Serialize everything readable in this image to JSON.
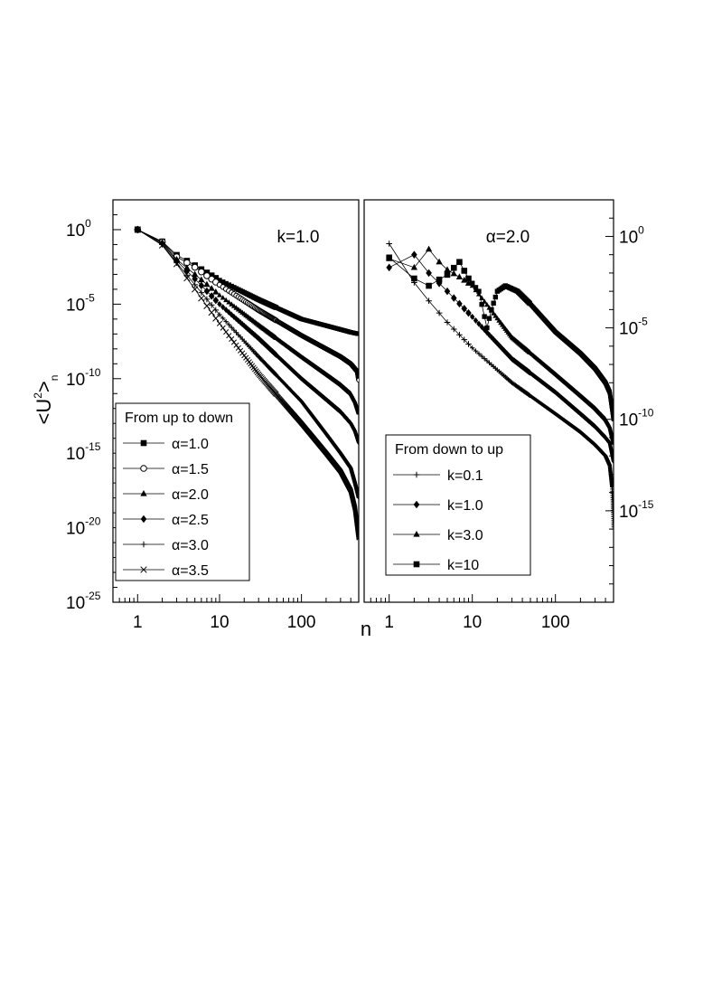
{
  "chart_data": {
    "type": "line",
    "xlabel": "n",
    "ylabel": "<U²>ₙ",
    "x_scale": "log",
    "y_scale": "log",
    "xlim": [
      0.5,
      500
    ],
    "panels": [
      {
        "id": "left",
        "annotation": "k=1.0",
        "ylim": [
          1e-25,
          100
        ],
        "legend": {
          "title": "From up to down",
          "position": "bottom-left"
        },
        "xticks": [
          {
            "value": 1,
            "label": "1"
          },
          {
            "value": 10,
            "label": "10"
          },
          {
            "value": 100,
            "label": "100"
          }
        ],
        "yticks": [
          {
            "value": 1,
            "base": "10",
            "exp": "0"
          },
          {
            "value": 1e-05,
            "base": "10",
            "exp": "-5"
          },
          {
            "value": 1e-10,
            "base": "10",
            "exp": "-10"
          },
          {
            "value": 1e-15,
            "base": "10",
            "exp": "-15"
          },
          {
            "value": 1e-20,
            "base": "10",
            "exp": "-20"
          },
          {
            "value": 1e-25,
            "base": "10",
            "exp": "-25"
          }
        ],
        "series": [
          {
            "name": "α=1.0",
            "marker": "square",
            "points": [
              [
                1,
                1.0
              ],
              [
                2,
                0.16
              ],
              [
                3,
                0.02
              ],
              [
                5,
                0.004
              ],
              [
                10,
                0.0004
              ],
              [
                30,
                2e-05
              ],
              [
                100,
                1e-06
              ],
              [
                300,
                2e-07
              ],
              [
                400,
                1.3e-07
              ],
              [
                500,
                1e-07
              ]
            ]
          },
          {
            "name": "α=1.5",
            "marker": "circle",
            "points": [
              [
                1,
                1.0
              ],
              [
                2,
                0.15
              ],
              [
                3,
                0.015
              ],
              [
                5,
                0.003
              ],
              [
                10,
                0.0002
              ],
              [
                30,
                4e-06
              ],
              [
                100,
                8e-08
              ],
              [
                300,
                3e-09
              ],
              [
                400,
                1e-09
              ],
              [
                480,
                3e-10
              ],
              [
                500,
                8e-11
              ]
            ]
          },
          {
            "name": "α=2.0",
            "marker": "triangle",
            "points": [
              [
                1,
                1.0
              ],
              [
                2,
                0.14
              ],
              [
                3,
                0.01
              ],
              [
                5,
                0.001
              ],
              [
                10,
                4e-05
              ],
              [
                30,
                4e-07
              ],
              [
                100,
                3e-09
              ],
              [
                200,
                2e-10
              ],
              [
                300,
                4e-11
              ],
              [
                400,
                1e-11
              ],
              [
                450,
                3e-12
              ],
              [
                500,
                5e-13
              ]
            ]
          },
          {
            "name": "α=2.5",
            "marker": "diamond",
            "points": [
              [
                1,
                1.0
              ],
              [
                2,
                0.12
              ],
              [
                3,
                0.008
              ],
              [
                5,
                0.0005
              ],
              [
                10,
                1e-05
              ],
              [
                30,
                5e-08
              ],
              [
                100,
                1e-10
              ],
              [
                200,
                4e-12
              ],
              [
                300,
                6e-13
              ],
              [
                400,
                1e-13
              ],
              [
                450,
                3e-14
              ],
              [
                500,
                5e-15
              ]
            ]
          },
          {
            "name": "α=3.0",
            "marker": "plus",
            "points": [
              [
                1,
                1.0
              ],
              [
                2,
                0.1
              ],
              [
                3,
                0.006
              ],
              [
                5,
                0.0002
              ],
              [
                10,
                2e-06
              ],
              [
                30,
                3e-09
              ],
              [
                100,
                3e-12
              ],
              [
                200,
                2e-14
              ],
              [
                300,
                1e-15
              ],
              [
                400,
                1e-16
              ],
              [
                450,
                1e-17
              ],
              [
                500,
                1e-18
              ]
            ]
          },
          {
            "name": "α=3.5",
            "marker": "cross",
            "points": [
              [
                1,
                1.0
              ],
              [
                2,
                0.09
              ],
              [
                3,
                0.005
              ],
              [
                5,
                0.0001
              ],
              [
                10,
                5e-07
              ],
              [
                30,
                2e-10
              ],
              [
                100,
                1e-13
              ],
              [
                200,
                1e-15
              ],
              [
                300,
                6e-17
              ],
              [
                400,
                3e-18
              ],
              [
                450,
                2e-19
              ],
              [
                500,
                2e-21
              ]
            ]
          }
        ]
      },
      {
        "id": "right",
        "annotation": "α=2.0",
        "ylim": [
          1e-20,
          100
        ],
        "legend": {
          "title": "From down to up",
          "position": "bottom-left"
        },
        "xticks": [
          {
            "value": 1,
            "label": "1"
          },
          {
            "value": 10,
            "label": "10"
          },
          {
            "value": 100,
            "label": "100"
          }
        ],
        "yticks": [
          {
            "value": 1,
            "base": "10",
            "exp": "0"
          },
          {
            "value": 1e-05,
            "base": "10",
            "exp": "-5"
          },
          {
            "value": 1e-10,
            "base": "10",
            "exp": "-10"
          },
          {
            "value": 1e-15,
            "base": "10",
            "exp": "-15"
          }
        ],
        "series": [
          {
            "name": "k=0.1",
            "marker": "plus",
            "points": [
              [
                1,
                0.4
              ],
              [
                2,
                0.003
              ],
              [
                3,
                0.0003
              ],
              [
                5,
                2e-05
              ],
              [
                10,
                8e-07
              ],
              [
                30,
                1e-08
              ],
              [
                100,
                2e-10
              ],
              [
                200,
                2e-11
              ],
              [
                300,
                4e-12
              ],
              [
                400,
                1e-12
              ],
              [
                450,
                3e-13
              ],
              [
                480,
                2e-14
              ],
              [
                500,
                1e-16
              ]
            ]
          },
          {
            "name": "k=1.0",
            "marker": "diamond",
            "points": [
              [
                1,
                0.02
              ],
              [
                2,
                0.1
              ],
              [
                3,
                0.01
              ],
              [
                5,
                0.001
              ],
              [
                10,
                4e-05
              ],
              [
                30,
                2e-07
              ],
              [
                100,
                3e-09
              ],
              [
                200,
                2e-10
              ],
              [
                300,
                4e-11
              ],
              [
                400,
                1e-11
              ],
              [
                450,
                5e-12
              ],
              [
                500,
                5e-13
              ]
            ]
          },
          {
            "name": "k=3.0",
            "marker": "triangle",
            "points": [
              [
                1,
                0.06
              ],
              [
                2,
                0.02
              ],
              [
                3,
                0.2
              ],
              [
                4,
                0.04
              ],
              [
                5,
                0.015
              ],
              [
                7,
                0.006
              ],
              [
                10,
                0.002
              ],
              [
                30,
                3e-06
              ],
              [
                100,
                3e-08
              ],
              [
                200,
                2e-09
              ],
              [
                300,
                4e-10
              ],
              [
                400,
                1e-10
              ],
              [
                450,
                4e-11
              ],
              [
                500,
                5e-12
              ]
            ]
          },
          {
            "name": "k=10",
            "marker": "square",
            "points": [
              [
                1,
                0.07
              ],
              [
                2,
                0.005
              ],
              [
                3,
                0.002
              ],
              [
                5,
                0.008
              ],
              [
                7,
                0.04
              ],
              [
                9,
                0.005
              ],
              [
                12,
                0.001
              ],
              [
                15,
                1e-05
              ],
              [
                17,
                0.0001
              ],
              [
                20,
                0.001
              ],
              [
                25,
                0.002
              ],
              [
                35,
                0.001
              ],
              [
                50,
                0.0002
              ],
              [
                100,
                6e-06
              ],
              [
                200,
                4e-07
              ],
              [
                300,
                6e-08
              ],
              [
                400,
                1e-08
              ],
              [
                450,
                3e-09
              ],
              [
                500,
                1e-10
              ]
            ]
          }
        ]
      }
    ]
  }
}
